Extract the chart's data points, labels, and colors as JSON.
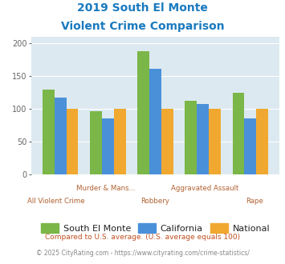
{
  "title_line1": "2019 South El Monte",
  "title_line2": "Violent Crime Comparison",
  "title_color": "#1a7abf",
  "south_el_monte": [
    129,
    96,
    188,
    112,
    124
  ],
  "california": [
    117,
    85,
    161,
    107,
    86
  ],
  "national": [
    100,
    100,
    100,
    100,
    100
  ],
  "colors": {
    "south_el_monte": "#7ab648",
    "california": "#4a90d9",
    "national": "#f0a830"
  },
  "ylim": [
    0,
    210
  ],
  "yticks": [
    0,
    50,
    100,
    150,
    200
  ],
  "background_color": "#dce9f0",
  "legend_labels": [
    "South El Monte",
    "California",
    "National"
  ],
  "x_top_labels": [
    "",
    "Murder & Mans...",
    "",
    "Aggravated Assault",
    ""
  ],
  "x_bot_labels": [
    "All Violent Crime",
    "",
    "Robbery",
    "",
    "Rape"
  ],
  "footnote1": "Compared to U.S. average. (U.S. average equals 100)",
  "footnote2": "© 2025 CityRating.com - https://www.cityrating.com/crime-statistics/",
  "footnote1_color": "#c05020",
  "footnote2_color": "#888888",
  "xlabel_color": "#b06030",
  "legend_text_color": "#222222"
}
